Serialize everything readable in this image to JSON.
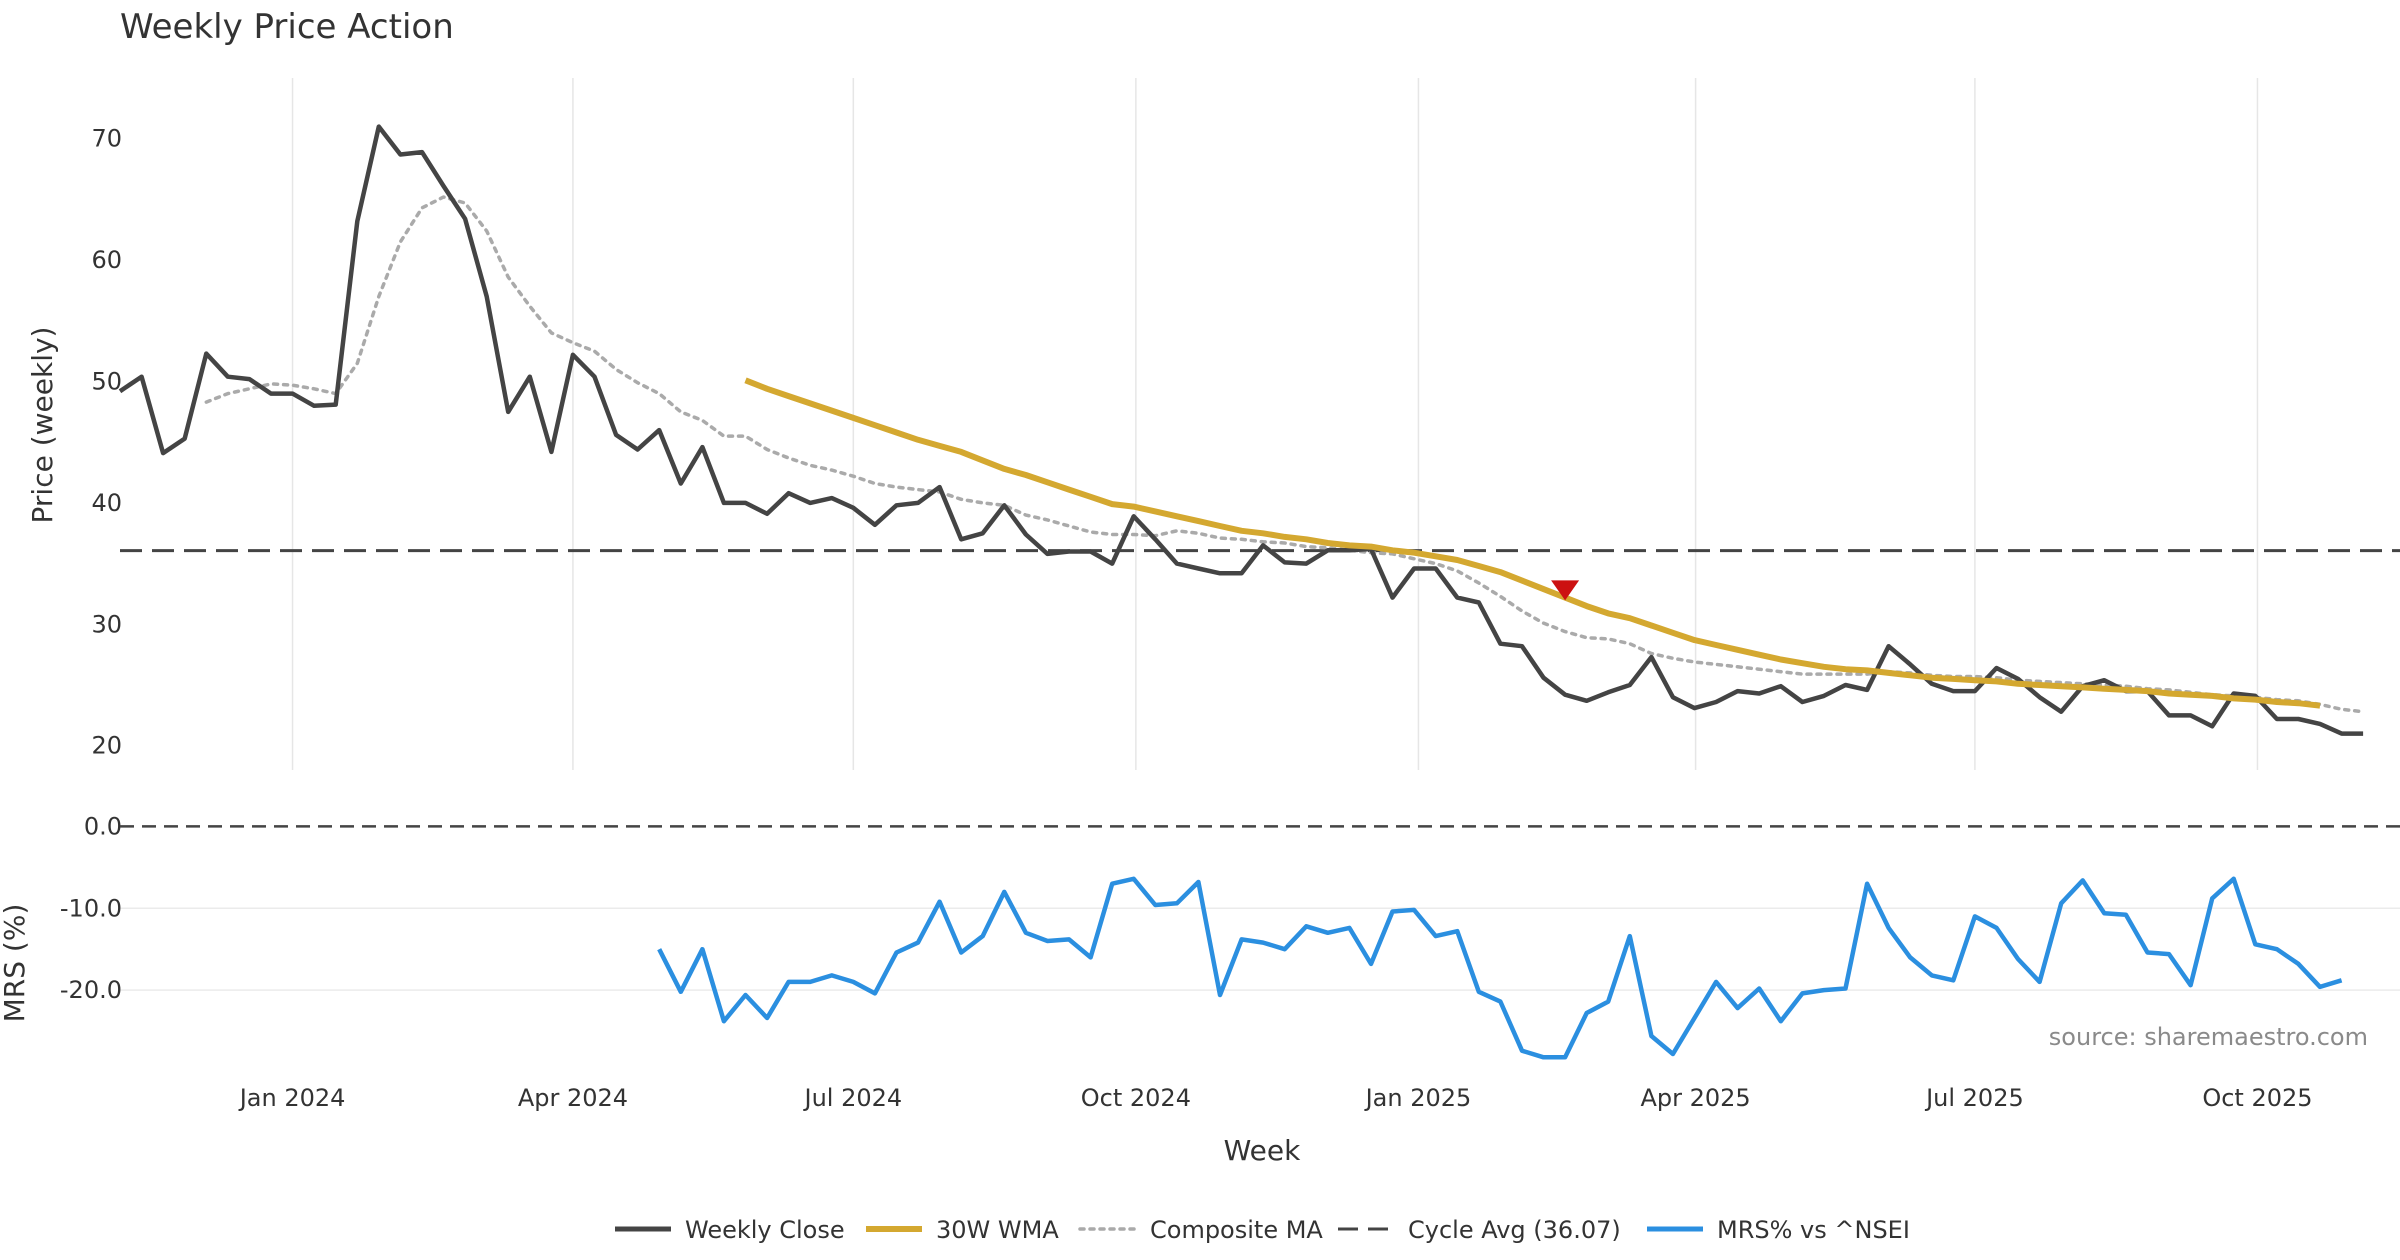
{
  "chart_data": {
    "type": "line",
    "title": "Weekly Price Action",
    "price_panel": {
      "ylabel": "Price (weekly)",
      "ylim": [
        18,
        75
      ],
      "yticks": [
        20,
        30,
        40,
        50,
        60,
        70
      ],
      "series": [
        {
          "name": "Weekly Close",
          "color": "#444444",
          "start_index": 0,
          "values": [
            49.2,
            50.4,
            44.1,
            45.3,
            52.3,
            50.4,
            50.2,
            49.0,
            49.0,
            48.0,
            48.1,
            63.2,
            71.0,
            68.7,
            68.9,
            66.1,
            63.4,
            57.0,
            47.5,
            50.4,
            44.2,
            52.2,
            50.4,
            45.6,
            44.4,
            46.0,
            41.6,
            44.6,
            40.0,
            40.0,
            39.1,
            40.8,
            40.0,
            40.4,
            39.6,
            38.2,
            39.8,
            40.0,
            41.3,
            37.0,
            37.5,
            39.8,
            37.4,
            35.8,
            36.0,
            36.0,
            35.0,
            38.9,
            37.0,
            35.0,
            34.6,
            34.2,
            34.2,
            36.5,
            35.1,
            35.0,
            36.1,
            36.1,
            36.2,
            32.2,
            34.6,
            34.6,
            32.2,
            31.8,
            28.4,
            28.2,
            25.6,
            24.2,
            23.7,
            24.4,
            25.0,
            27.3,
            24.0,
            23.1,
            23.6,
            24.5,
            24.3,
            24.9,
            23.6,
            24.1,
            25.0,
            24.6,
            28.2,
            26.7,
            25.1,
            24.5,
            24.5,
            26.4,
            25.5,
            24.0,
            22.8,
            24.9,
            25.4,
            24.5,
            24.5,
            22.5,
            22.5,
            21.6,
            24.3,
            24.1,
            22.2,
            22.2,
            21.8,
            21.0,
            21.0
          ]
        },
        {
          "name": "30W WMA",
          "color": "#d4a830",
          "start_index": 29,
          "values": [
            50.1,
            49.4,
            48.8,
            48.2,
            47.6,
            47.0,
            46.4,
            45.8,
            45.2,
            44.7,
            44.2,
            43.5,
            42.8,
            42.3,
            41.7,
            41.1,
            40.5,
            39.9,
            39.7,
            39.3,
            38.9,
            38.5,
            38.1,
            37.7,
            37.5,
            37.2,
            37.0,
            36.7,
            36.5,
            36.4,
            36.1,
            35.9,
            35.6,
            35.3,
            34.8,
            34.3,
            33.6,
            32.9,
            32.2,
            31.5,
            30.9,
            30.5,
            29.9,
            29.3,
            28.7,
            28.3,
            27.9,
            27.5,
            27.1,
            26.8,
            26.5,
            26.3,
            26.2,
            26.0,
            25.8,
            25.6,
            25.5,
            25.4,
            25.3,
            25.1,
            25.0,
            24.9,
            24.8,
            24.7,
            24.6,
            24.5,
            24.3,
            24.2,
            24.1,
            23.9,
            23.8,
            23.6,
            23.5,
            23.3
          ]
        },
        {
          "name": "Composite MA",
          "color": "#aaaaaa",
          "start_index": 4,
          "values": [
            48.3,
            49.0,
            49.4,
            49.8,
            49.7,
            49.4,
            49.0,
            51.5,
            57.0,
            61.5,
            64.3,
            65.2,
            64.7,
            62.4,
            58.6,
            56.2,
            54.0,
            53.2,
            52.5,
            51.0,
            49.9,
            49.0,
            47.5,
            46.8,
            45.5,
            45.5,
            44.4,
            43.7,
            43.1,
            42.7,
            42.2,
            41.6,
            41.3,
            41.1,
            40.9,
            40.3,
            40.0,
            39.8,
            39.0,
            38.6,
            38.1,
            37.6,
            37.4,
            37.4,
            37.3,
            37.7,
            37.5,
            37.1,
            37.0,
            36.8,
            36.7,
            36.4,
            36.3,
            36.1,
            35.9,
            35.8,
            35.4,
            35.0,
            34.4,
            33.4,
            32.3,
            31.1,
            30.1,
            29.4,
            28.9,
            28.8,
            28.4,
            27.6,
            27.2,
            26.9,
            26.7,
            26.5,
            26.3,
            26.1,
            25.9,
            25.9,
            25.9,
            25.9,
            26.1,
            26.0,
            25.8,
            25.7,
            25.7,
            25.6,
            25.4,
            25.3,
            25.2,
            25.1,
            25.0,
            24.9,
            24.7,
            24.6,
            24.4,
            24.2,
            24.1,
            24.0,
            23.8,
            23.7,
            23.4,
            23.0,
            22.8
          ]
        }
      ],
      "cycle_avg": {
        "name": "Cycle Avg (36.07)",
        "value": 36.07,
        "color": "#444444"
      },
      "marker": {
        "type": "sell-triangle",
        "week_index": 67,
        "value": 32.8,
        "color": "#cc1111"
      }
    },
    "mrs_panel": {
      "ylabel": "MRS (%)",
      "ylim": [
        -30,
        2
      ],
      "yticks": [
        0.0,
        -10.0,
        -20.0
      ],
      "ytick_labels": [
        "0.0",
        "-10.0",
        "-20.0"
      ],
      "zero_line": 0,
      "series": [
        {
          "name": "MRS% vs ^NSEI",
          "color": "#2b8fe0",
          "start_index": 25,
          "values": [
            -15.0,
            -20.2,
            -15.0,
            -23.8,
            -20.6,
            -23.4,
            -19.0,
            -19.0,
            -18.2,
            -19.0,
            -20.4,
            -15.4,
            -14.2,
            -9.2,
            -15.4,
            -13.4,
            -8.0,
            -13.0,
            -14.0,
            -13.8,
            -16.0,
            -7.0,
            -6.4,
            -9.6,
            -9.4,
            -6.8,
            -20.6,
            -13.8,
            -14.2,
            -15.0,
            -12.2,
            -13.0,
            -12.4,
            -16.8,
            -10.4,
            -10.2,
            -13.4,
            -12.8,
            -20.2,
            -21.4,
            -27.4,
            -28.2,
            -28.2,
            -22.8,
            -21.4,
            -13.4,
            -25.6,
            -27.8,
            -23.4,
            -19.0,
            -22.2,
            -19.8,
            -23.8,
            -20.4,
            -20.0,
            -19.8,
            -7.0,
            -12.4,
            -16.0,
            -18.2,
            -18.8,
            -11.0,
            -12.4,
            -16.2,
            -19.0,
            -9.4,
            -6.6,
            -10.6,
            -10.8,
            -15.4,
            -15.6,
            -19.4,
            -8.8,
            -6.4,
            -14.4,
            -15.0,
            -16.8,
            -19.6,
            -18.8
          ]
        }
      ]
    },
    "xlabel": "Week",
    "x_week_count": 105,
    "x_ticks": [
      {
        "label": "Jan 2024",
        "week": 8
      },
      {
        "label": "Apr 2024",
        "week": 21
      },
      {
        "label": "Jul 2024",
        "week": 34
      },
      {
        "label": "Oct 2024",
        "week": 47.1
      },
      {
        "label": "Jan 2025",
        "week": 60.2
      },
      {
        "label": "Apr 2025",
        "week": 73.05
      },
      {
        "label": "Jul 2025",
        "week": 86
      },
      {
        "label": "Oct 2025",
        "week": 99.1
      }
    ],
    "legend": {
      "placement": "bottom-center",
      "entries": [
        {
          "label": "Weekly Close",
          "style": "solid",
          "color": "#444444"
        },
        {
          "label": "30W WMA",
          "style": "solid-thick",
          "color": "#d4a830"
        },
        {
          "label": "Composite MA",
          "style": "dotted",
          "color": "#aaaaaa"
        },
        {
          "label": "Cycle Avg (36.07)",
          "style": "dashed",
          "color": "#444444"
        },
        {
          "label": "MRS% vs ^NSEI",
          "style": "solid",
          "color": "#2b8fe0"
        }
      ]
    },
    "source_note": "source: sharemaestro.com"
  }
}
